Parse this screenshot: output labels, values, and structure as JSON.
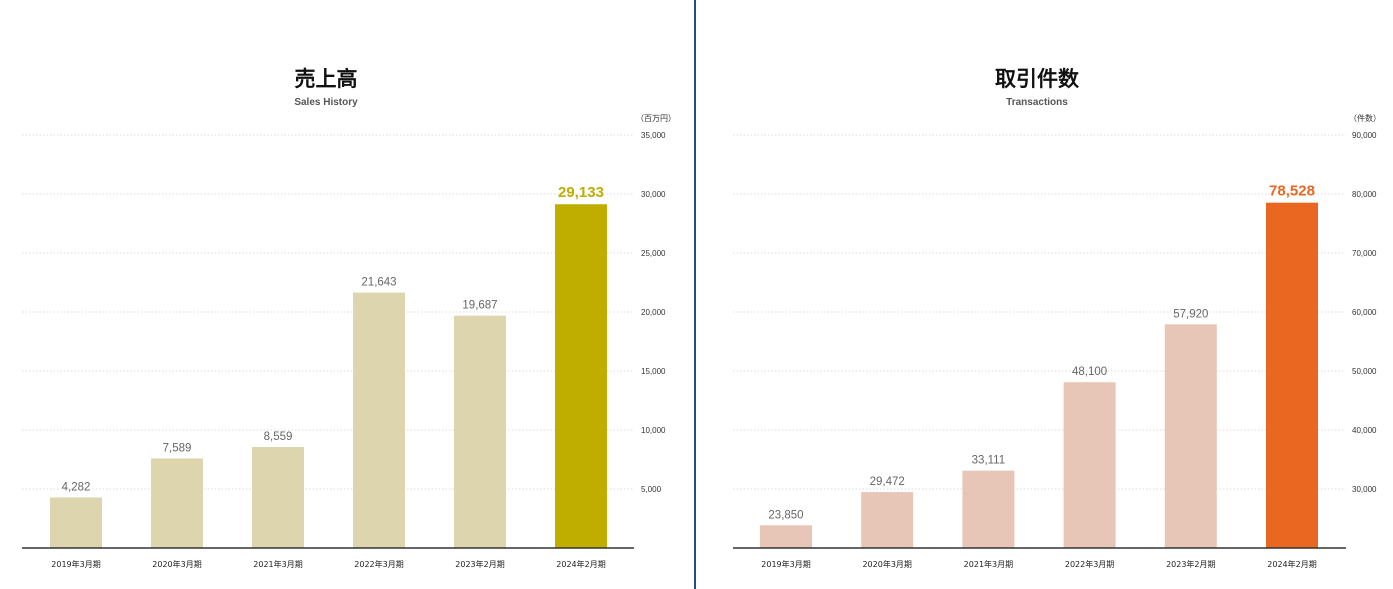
{
  "colors": {
    "divider": "#1f4f8f",
    "sales_bar": "#ddd5ad",
    "sales_highlight": "#bfad00",
    "transactions_bar": "#e8c6b7",
    "transactions_highlight": "#e96721",
    "grid": "#cfcfcf",
    "axis": "#333333"
  },
  "chart_data": [
    {
      "type": "bar",
      "title": "売上高",
      "subtitle": "Sales History",
      "unit": "（百万円）",
      "categories": [
        "2019年3月期",
        "2020年3月期",
        "2021年3月期",
        "2022年3月期",
        "2023年2月期",
        "2024年2月期"
      ],
      "values": [
        4282,
        7589,
        8559,
        21643,
        19687,
        29133
      ],
      "value_labels": [
        "4,282",
        "7,589",
        "8,559",
        "21,643",
        "19,687",
        "29,133"
      ],
      "highlight_index": 5,
      "ylim": [
        0,
        35000
      ],
      "yticks": [
        5000,
        10000,
        15000,
        20000,
        25000,
        30000,
        35000
      ],
      "ytick_labels": [
        "5,000",
        "10,000",
        "15,000",
        "20,000",
        "25,000",
        "30,000",
        "35,000"
      ],
      "grid": true,
      "y_axis_side": "right"
    },
    {
      "type": "bar",
      "title": "取引件数",
      "subtitle": "Transactions",
      "unit": "（件数）",
      "categories": [
        "2019年3月期",
        "2020年3月期",
        "2021年3月期",
        "2022年3月期",
        "2023年2月期",
        "2024年2月期"
      ],
      "values": [
        23850,
        29472,
        33111,
        48100,
        57920,
        78528
      ],
      "value_labels": [
        "23,850",
        "29,472",
        "33,111",
        "48,100",
        "57,920",
        "78,528"
      ],
      "highlight_index": 5,
      "ylim": [
        20000,
        90000
      ],
      "yticks": [
        30000,
        40000,
        50000,
        60000,
        70000,
        80000,
        90000
      ],
      "ytick_labels": [
        "30,000",
        "40,000",
        "50,000",
        "60,000",
        "70,000",
        "80,000",
        "90,000"
      ],
      "grid": true,
      "y_axis_side": "right"
    }
  ]
}
